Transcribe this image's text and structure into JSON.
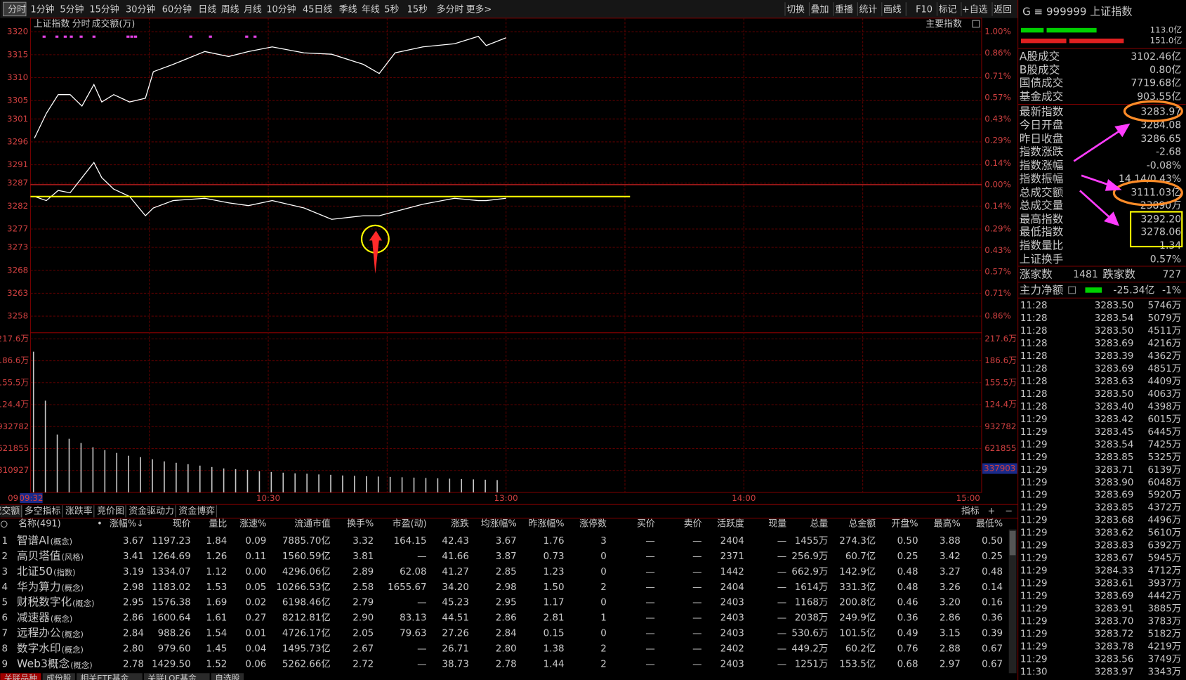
{
  "toolbar": {
    "left": [
      "分时",
      "1分钟",
      "5分钟",
      "15分钟",
      "30分钟",
      "60分钟",
      "日线",
      "周线",
      "月线",
      "10分钟",
      "45日线",
      "季线",
      "年线",
      "5秒",
      "15秒",
      "多分时",
      "更多>"
    ],
    "right": [
      "切换",
      "叠加",
      "重播",
      "统计",
      "画线",
      "F10",
      "标记",
      "+自选",
      "返回"
    ]
  },
  "chart_data": {
    "type": "line",
    "title": "上证指数",
    "mode": "分时",
    "volume_title": "成交额(万)",
    "index_button": "主要指数",
    "xlim": [
      0,
      240
    ],
    "xticks": [
      {
        "value": 0,
        "label": "09"
      },
      {
        "value": 60,
        "label": "10:30"
      },
      {
        "value": 120,
        "label": "13:00"
      },
      {
        "value": 180,
        "label": "14:00"
      },
      {
        "value": 240,
        "label": "15:00"
      }
    ],
    "cursor_time": "09:32",
    "xgrid": [
      30,
      60,
      90,
      120,
      150,
      180,
      210
    ],
    "ylim": [
      3258,
      3320
    ],
    "yticks": [
      3320,
      3315,
      3310,
      3305,
      3301,
      3296,
      3291,
      3287,
      3282,
      3277,
      3273,
      3268,
      3263,
      3258
    ],
    "y2lim": [
      -0.86,
      1.0
    ],
    "y2ticks": [
      {
        "value": 1.0,
        "label": "1.00%"
      },
      {
        "value": 0.86,
        "label": "0.86%"
      },
      {
        "value": 0.71,
        "label": "0.71%"
      },
      {
        "value": 0.57,
        "label": "0.57%"
      },
      {
        "value": 0.43,
        "label": "0.43%"
      },
      {
        "value": 0.29,
        "label": "0.29%"
      },
      {
        "value": 0.14,
        "label": "0.14%"
      },
      {
        "value": 0.0,
        "label": "0.00%"
      },
      {
        "value": -0.14,
        "label": "0.14%"
      },
      {
        "value": -0.29,
        "label": "0.29%"
      },
      {
        "value": -0.43,
        "label": "0.43%"
      },
      {
        "value": -0.57,
        "label": "0.57%"
      },
      {
        "value": -0.71,
        "label": "0.71%"
      },
      {
        "value": -0.86,
        "label": "0.86%"
      }
    ],
    "series": [
      {
        "color": "#ffffff",
        "x": [
          1,
          4,
          7,
          10,
          13,
          16,
          18,
          21,
          25,
          29,
          31,
          36,
          44,
          50,
          55,
          61,
          69,
          76,
          84,
          88,
          92,
          99,
          107,
          113,
          115,
          120
        ],
        "values": [
          3296.8,
          3302.2,
          3306.3,
          3306.3,
          3303.8,
          3308.5,
          3304.7,
          3306.3,
          3304.7,
          3305.5,
          3311.3,
          3312.9,
          3315.7,
          3314.6,
          3315.7,
          3316.7,
          3315.4,
          3315.1,
          3312.9,
          3310.9,
          3315.4,
          3316.7,
          3317.4,
          3319.0,
          3317.0,
          3318.7
        ]
      },
      {
        "color": "#ffffff",
        "x": [
          1,
          4,
          7,
          10,
          13,
          16,
          18,
          21,
          25,
          29,
          31,
          36,
          44,
          50,
          55,
          61,
          69,
          76,
          84,
          88,
          92,
          99,
          107,
          113,
          115,
          120
        ],
        "values": [
          3284.1,
          3283.2,
          3285.4,
          3284.9,
          3288.2,
          3291.5,
          3288.2,
          3285.7,
          3284.1,
          3279.9,
          3281.6,
          3283.2,
          3283.7,
          3282.7,
          3282.1,
          3283.2,
          3281.6,
          3279.1,
          3279.9,
          3279.9,
          3280.8,
          3282.4,
          3283.7,
          3283.2,
          3283.2,
          3283.7
        ]
      }
    ],
    "reference_line": {
      "value": 3284.08,
      "color": "#ffff00"
    },
    "volume": {
      "ylim": [
        0,
        2176000
      ],
      "yticks": [
        {
          "value": 2176000,
          "label": "217.6万"
        },
        {
          "value": 1866000,
          "label": "186.6万"
        },
        {
          "value": 1555000,
          "label": "155.5万"
        },
        {
          "value": 1244000,
          "label": "124.4万"
        },
        932782,
        621855,
        310927
      ],
      "cursor_value": 337903,
      "color": "#c8c8c8",
      "x": [
        0,
        3,
        6,
        9,
        12,
        15,
        18,
        21,
        24,
        27,
        30,
        33,
        36,
        39,
        42,
        45,
        48,
        51,
        54,
        57,
        60,
        63,
        66,
        69,
        72,
        75,
        78,
        81,
        84,
        87,
        90,
        93,
        96,
        99,
        102,
        105,
        108,
        111,
        114,
        117
      ],
      "values": [
        1994000,
        1300000,
        820000,
        760000,
        700000,
        640000,
        600000,
        560000,
        520000,
        500000,
        470000,
        440000,
        420000,
        400000,
        380000,
        360000,
        340000,
        330000,
        320000,
        300000,
        290000,
        280000,
        270000,
        265000,
        255000,
        250000,
        240000,
        235000,
        230000,
        225000,
        220000,
        215000,
        210000,
        205000,
        200000,
        195000,
        190000,
        185000,
        180000,
        175000
      ]
    }
  },
  "indicator_tabs": [
    "成交额",
    "多空指标",
    "涨跌率",
    "竞价图",
    "资金驱动力",
    "资金博弈"
  ],
  "indicator_buttons": [
    "指标",
    "+",
    "−"
  ],
  "table": {
    "headers": [
      "名称(491)",
      "涨幅%↓",
      "现价",
      "量比",
      "涨速%",
      "流通市值",
      "换手%",
      "市盈(动)",
      "涨跌",
      "均涨幅%",
      "昨涨幅%",
      "涨停数",
      "买价",
      "卖价",
      "活跃度",
      "现量",
      "总量",
      "总金额",
      "开盘%",
      "最高%",
      "最低%"
    ],
    "dot": "•",
    "rows": [
      {
        "no": "1",
        "name": "智谱AI",
        "tag": "(概念)",
        "cells": [
          "3.67",
          "1197.23",
          "1.84",
          "0.09",
          "7885.70亿",
          "3.32",
          "164.15",
          "42.43",
          "3.67",
          "1.76",
          "3",
          "—",
          "—",
          "2404",
          "—",
          "1455万",
          "274.3亿",
          "0.50",
          "3.88",
          "0.50"
        ]
      },
      {
        "no": "2",
        "name": "高贝塔值",
        "tag": "(风格)",
        "cells": [
          "3.41",
          "1264.69",
          "1.26",
          "0.11",
          "1560.59亿",
          "3.81",
          "—",
          "41.66",
          "3.87",
          "0.73",
          "0",
          "—",
          "—",
          "2371",
          "—",
          "256.9万",
          "60.7亿",
          "0.25",
          "3.42",
          "0.25"
        ]
      },
      {
        "no": "3",
        "name": "北证50",
        "tag": "(指数)",
        "cells": [
          "3.19",
          "1334.07",
          "1.12",
          "0.00",
          "4296.06亿",
          "2.89",
          "62.08",
          "41.27",
          "2.85",
          "1.23",
          "0",
          "—",
          "—",
          "1442",
          "—",
          "662.9万",
          "142.9亿",
          "0.48",
          "3.27",
          "0.48"
        ]
      },
      {
        "no": "4",
        "name": "华为算力",
        "tag": "(概念)",
        "cells": [
          "2.98",
          "1183.02",
          "1.53",
          "0.05",
          "10266.53亿",
          "2.58",
          "1655.67",
          "34.20",
          "2.98",
          "1.50",
          "2",
          "—",
          "—",
          "2404",
          "—",
          "1614万",
          "331.3亿",
          "0.48",
          "3.26",
          "0.14"
        ]
      },
      {
        "no": "5",
        "name": "财税数字化",
        "tag": "(概念)",
        "cells": [
          "2.95",
          "1576.38",
          "1.69",
          "0.02",
          "6198.46亿",
          "2.79",
          "—",
          "45.23",
          "2.95",
          "1.17",
          "0",
          "—",
          "—",
          "2403",
          "—",
          "1168万",
          "200.8亿",
          "0.46",
          "3.20",
          "0.16"
        ]
      },
      {
        "no": "6",
        "name": "减速器",
        "tag": "(概念)",
        "cells": [
          "2.86",
          "1600.64",
          "1.61",
          "0.27",
          "8212.81亿",
          "2.90",
          "83.13",
          "44.51",
          "2.86",
          "2.81",
          "1",
          "—",
          "—",
          "2403",
          "—",
          "2038万",
          "249.9亿",
          "0.36",
          "2.86",
          "0.36"
        ]
      },
      {
        "no": "7",
        "name": "远程办公",
        "tag": "(概念)",
        "cells": [
          "2.84",
          "988.26",
          "1.54",
          "0.01",
          "4726.17亿",
          "2.05",
          "79.63",
          "27.26",
          "2.84",
          "0.15",
          "0",
          "—",
          "—",
          "2403",
          "—",
          "530.6万",
          "101.5亿",
          "0.49",
          "3.15",
          "0.39"
        ]
      },
      {
        "no": "8",
        "name": "数字水印",
        "tag": "(概念)",
        "cells": [
          "2.80",
          "979.60",
          "1.45",
          "0.04",
          "1495.73亿",
          "2.67",
          "—",
          "26.71",
          "2.80",
          "1.38",
          "2",
          "—",
          "—",
          "2402",
          "—",
          "449.2万",
          "60.2亿",
          "0.76",
          "2.88",
          "0.67"
        ]
      },
      {
        "no": "9",
        "name": "Web3概念",
        "tag": "(概念)",
        "cells": [
          "2.78",
          "1429.50",
          "1.52",
          "0.06",
          "5262.66亿",
          "2.72",
          "—",
          "38.73",
          "2.78",
          "1.44",
          "2",
          "—",
          "—",
          "2403",
          "—",
          "1251万",
          "153.5亿",
          "0.68",
          "2.97",
          "0.67"
        ]
      }
    ]
  },
  "bottom_tabs": [
    "关联品种",
    "成份股",
    "相关ETF基金",
    "关联LOF基金",
    "自选股"
  ],
  "quote": {
    "header": "G ≡ 999999 上证指数",
    "bar_values": [
      "113.0亿",
      "151.0亿"
    ],
    "stats": [
      {
        "label": "A股成交",
        "value": "3102.46亿",
        "color": "#e0e0e0"
      },
      {
        "label": "B股成交",
        "value": "0.80亿",
        "color": "#e0e0e0"
      },
      {
        "label": "国债成交",
        "value": "7719.68亿",
        "color": "#e0e0e0"
      },
      {
        "label": "基金成交",
        "value": "903.55亿",
        "color": "#e0e0e0"
      },
      {
        "label": "最新指数",
        "value": "3283.97",
        "color": "#00e600"
      },
      {
        "label": "今日开盘",
        "value": "3284.08",
        "color": "#00e600"
      },
      {
        "label": "昨日收盘",
        "value": "3286.65",
        "color": "#e0e0e0"
      },
      {
        "label": "指数涨跌",
        "value": "-2.68",
        "color": "#00e600"
      },
      {
        "label": "指数涨幅",
        "value": "-0.08%",
        "color": "#00e600"
      },
      {
        "label": "指数振幅",
        "value": "14.14/0.43%",
        "color": "#e0e0e0"
      },
      {
        "label": "总成交额",
        "value": "3111.03亿",
        "color": "#e0e0e0"
      },
      {
        "label": "总成交量",
        "value": "23890万",
        "color": "#e0e000"
      },
      {
        "label": "最高指数",
        "value": "3292.20",
        "color": "#ff3c3c"
      },
      {
        "label": "最低指数",
        "value": "3278.06",
        "color": "#00e600"
      },
      {
        "label": "指数量比",
        "value": "1.34",
        "color": "#ff3c3c"
      },
      {
        "label": "上证换手",
        "value": "0.57%",
        "color": "#e0e0e0"
      }
    ],
    "breadth": {
      "up_label": "涨家数",
      "up": "1481",
      "down_label": "跌家数",
      "down": "727"
    },
    "main_flow": {
      "label": "主力净额",
      "value": "-25.34亿",
      "pct": "-1%"
    },
    "ticks": [
      [
        "11:28",
        "3283.50",
        "5746万"
      ],
      [
        "11:28",
        "3283.54",
        "5079万"
      ],
      [
        "11:28",
        "3283.50",
        "4511万"
      ],
      [
        "11:28",
        "3283.69",
        "4216万"
      ],
      [
        "11:28",
        "3283.39",
        "4362万"
      ],
      [
        "11:28",
        "3283.69",
        "4851万"
      ],
      [
        "11:28",
        "3283.63",
        "4409万"
      ],
      [
        "11:28",
        "3283.50",
        "4063万"
      ],
      [
        "11:28",
        "3283.40",
        "4398万"
      ],
      [
        "11:29",
        "3283.42",
        "6015万"
      ],
      [
        "11:29",
        "3283.45",
        "6445万"
      ],
      [
        "11:29",
        "3283.54",
        "7425万"
      ],
      [
        "11:29",
        "3283.85",
        "5325万"
      ],
      [
        "11:29",
        "3283.71",
        "6139万"
      ],
      [
        "11:29",
        "3283.90",
        "6048万"
      ],
      [
        "11:29",
        "3283.69",
        "5920万"
      ],
      [
        "11:29",
        "3283.85",
        "4372万"
      ],
      [
        "11:29",
        "3283.68",
        "4496万"
      ],
      [
        "11:29",
        "3283.62",
        "5610万"
      ],
      [
        "11:29",
        "3283.83",
        "6392万"
      ],
      [
        "11:29",
        "3283.67",
        "5945万"
      ],
      [
        "11:29",
        "3284.33",
        "4712万"
      ],
      [
        "11:29",
        "3283.61",
        "3937万"
      ],
      [
        "11:29",
        "3283.69",
        "4442万"
      ],
      [
        "11:29",
        "3283.91",
        "3885万"
      ],
      [
        "11:29",
        "3283.70",
        "3783万"
      ],
      [
        "11:29",
        "3283.72",
        "5182万"
      ],
      [
        "11:29",
        "3283.78",
        "4219万"
      ],
      [
        "11:29",
        "3283.56",
        "3749万"
      ],
      [
        "11:30",
        "3283.97",
        "3343万"
      ]
    ]
  }
}
